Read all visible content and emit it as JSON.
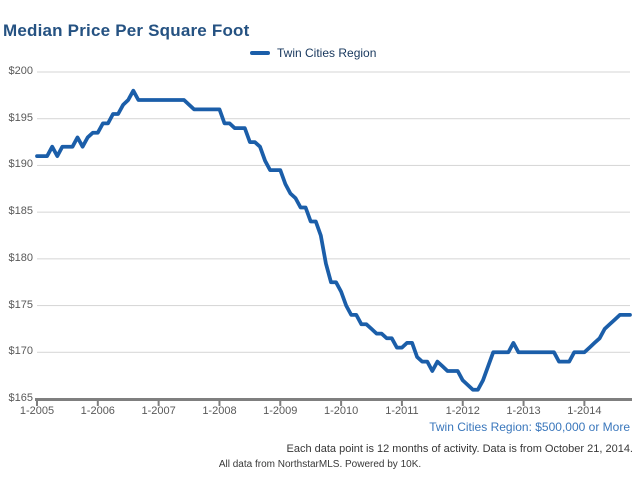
{
  "page": {
    "background": "#FFFFFF"
  },
  "title": "Median Price Per Square Foot",
  "legend": {
    "label": "Twin Cities Region"
  },
  "footer": {
    "series_note": "Twin Cities Region: $500,000 or More",
    "data_note": "Each data point is 12 months of activity. Data is from October 21, 2014.",
    "source_note": "All data from NorthstarMLS. Powered by 10K."
  },
  "colors": {
    "line": "#1B5EA9",
    "title_text": "#255282",
    "legend_text": "#17375D",
    "series_note_text": "#3A77BC",
    "axis_text": "#595959",
    "gridline": "#D6D6D6",
    "axis_line": "#7F7F7F"
  },
  "chart_data": {
    "type": "line",
    "title": "Median Price Per Square Foot",
    "xlabel": "",
    "ylabel": "",
    "ylim": [
      165,
      200
    ],
    "grid": true,
    "legend_position": "top-center",
    "x_tick_labels": [
      "1-2005",
      "1-2006",
      "1-2007",
      "1-2008",
      "1-2009",
      "1-2010",
      "1-2011",
      "1-2012",
      "1-2013",
      "1-2014"
    ],
    "y_tick_labels": [
      "$200",
      "$195",
      "$190",
      "$185",
      "$180",
      "$175",
      "$170",
      "$165"
    ],
    "x_start": "2005-01",
    "x_end": "2014-10",
    "points_per_year": 12,
    "series": [
      {
        "name": "Twin Cities Region",
        "values": [
          191,
          191,
          191,
          192,
          191,
          192,
          192,
          192,
          193,
          192,
          193,
          193.5,
          193.5,
          194.5,
          194.5,
          195.5,
          195.5,
          196.5,
          197,
          198,
          197,
          197,
          197,
          197,
          197,
          197,
          197,
          197,
          197,
          197,
          196.5,
          196,
          196,
          196,
          196,
          196,
          196,
          194.5,
          194.5,
          194,
          194,
          194,
          192.5,
          192.5,
          192,
          190.5,
          189.5,
          189.5,
          189.5,
          188,
          187,
          186.5,
          185.5,
          185.5,
          184,
          184,
          182.5,
          179.5,
          177.5,
          177.5,
          176.5,
          175,
          174,
          174,
          173,
          173,
          172.5,
          172,
          172,
          171.5,
          171.5,
          170.5,
          170.5,
          171,
          171,
          169.5,
          169,
          169,
          168,
          169,
          168.5,
          168,
          168,
          168,
          167,
          166.5,
          166,
          166,
          167,
          168.5,
          170,
          170,
          170,
          170,
          171,
          170,
          170,
          170,
          170,
          170,
          170,
          170,
          170,
          169,
          169,
          169,
          170,
          170,
          170,
          170.5,
          171,
          171.5,
          172.5,
          173,
          173.5,
          174,
          174,
          174
        ]
      }
    ]
  }
}
